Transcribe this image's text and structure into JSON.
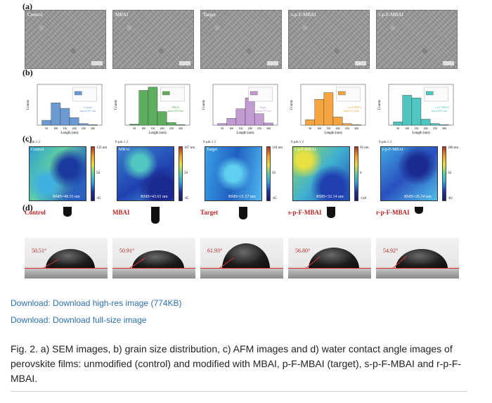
{
  "panel_labels": [
    "(a)",
    "(b)",
    "(c)",
    "(d)"
  ],
  "samples": [
    {
      "name": "Control",
      "sem": "Control",
      "hist_color": "#6b9bd2",
      "hist_legend": "Control",
      "hist_mean": "mean:159.1 nm",
      "afm_label": "Control",
      "rms": "RMS=48.55 nm",
      "cb_top": "132 nm",
      "cb_mid": "50",
      "cb_bot": "-65",
      "ca_label": "Control",
      "angle": "50.51°"
    },
    {
      "name": "MBAI",
      "sem": "MBAI",
      "hist_color": "#5fae5f",
      "hist_legend": "MBAI",
      "hist_mean": "mean:169.8 nm",
      "afm_label": "MBAI",
      "rms": "RMS=43.61 nm",
      "cb_top": "167 nm",
      "cb_mid": "50",
      "cb_bot": "-65",
      "ca_label": "MBAI",
      "angle": "50.91°"
    },
    {
      "name": "Target",
      "sem": "Target",
      "hist_color": "#c39bd3",
      "hist_legend": "Target",
      "hist_mean": "mean:178.9 nm",
      "afm_label": "Target",
      "rms": "RMS=21.57 nm",
      "cb_top": "118 nm",
      "cb_mid": "50",
      "cb_bot": "-65",
      "ca_label": "Target",
      "angle": "61.93°"
    },
    {
      "name": "s-p-F-MBAI",
      "sem": "s-p-F-MBAI",
      "hist_color": "#f5a540",
      "hist_legend": "s-p-F-MBAI",
      "hist_mean": "mean:153.6 nm",
      "afm_label": "s-p-F-MBAI",
      "rms": "RMS=32.14 nm",
      "cb_top": "95 nm",
      "cb_mid": "0",
      "cb_bot": "-118",
      "ca_label": "s-p-F-MBAI",
      "angle": "56.80°"
    },
    {
      "name": "r-p-F-MBAI",
      "sem": "r-p-F-MBAI",
      "hist_color": "#4fc7c0",
      "hist_legend": "r-p-F-MBAI",
      "hist_mean": "mean:169.2 nm",
      "afm_label": "r-p-F-MBAI",
      "rms": "RMS=26.34 nm",
      "cb_top": "180 nm",
      "cb_mid": "50",
      "cb_bot": "-82",
      "ca_label": "r-p-F-MBAI",
      "angle": "54.92°"
    }
  ],
  "hist_axis": {
    "xlabel": "Length (nm)",
    "ylabel": "Counts"
  },
  "afm_axis": {
    "unit": "0 µm   1   2"
  },
  "chart_data": [
    {
      "type": "bar",
      "categories": [
        "50",
        "100",
        "150",
        "200",
        "250",
        "300"
      ],
      "values": [
        18,
        82,
        62,
        28,
        6,
        2
      ],
      "xlabel": "Length (nm)",
      "ylabel": "Counts"
    },
    {
      "type": "bar",
      "categories": [
        "50",
        "100",
        "150",
        "200",
        "250",
        "300"
      ],
      "values": [
        4,
        128,
        140,
        50,
        10,
        2
      ],
      "xlabel": "Length (nm)",
      "ylabel": "Counts"
    },
    {
      "type": "bar",
      "categories": [
        "50",
        "100",
        "150",
        "200",
        "250",
        "300"
      ],
      "values": [
        6,
        25,
        60,
        100,
        42,
        8
      ],
      "xlabel": "Length (nm)",
      "ylabel": "Counts"
    },
    {
      "type": "bar",
      "categories": [
        "50",
        "100",
        "150",
        "200",
        "250",
        "300"
      ],
      "values": [
        20,
        95,
        120,
        30,
        6,
        2
      ],
      "xlabel": "Length (nm)",
      "ylabel": "Counts"
    },
    {
      "type": "bar",
      "categories": [
        "50",
        "100",
        "150",
        "200",
        "250",
        "300"
      ],
      "values": [
        12,
        110,
        100,
        22,
        6,
        2
      ],
      "xlabel": "Length (nm)",
      "ylabel": "Counts"
    }
  ],
  "links": {
    "highres": "Download: Download high-res image (774KB)",
    "fullsize": "Download: Download full-size image"
  },
  "caption": "Fig. 2. a) SEM images, b) grain size distribution, c) AFM images and d) water contact angle images of perovskite films: unmodified (control) and modified with MBAI, p-F-MBAI (target), s-p-F-MBAI and r-p-F-MBAI."
}
